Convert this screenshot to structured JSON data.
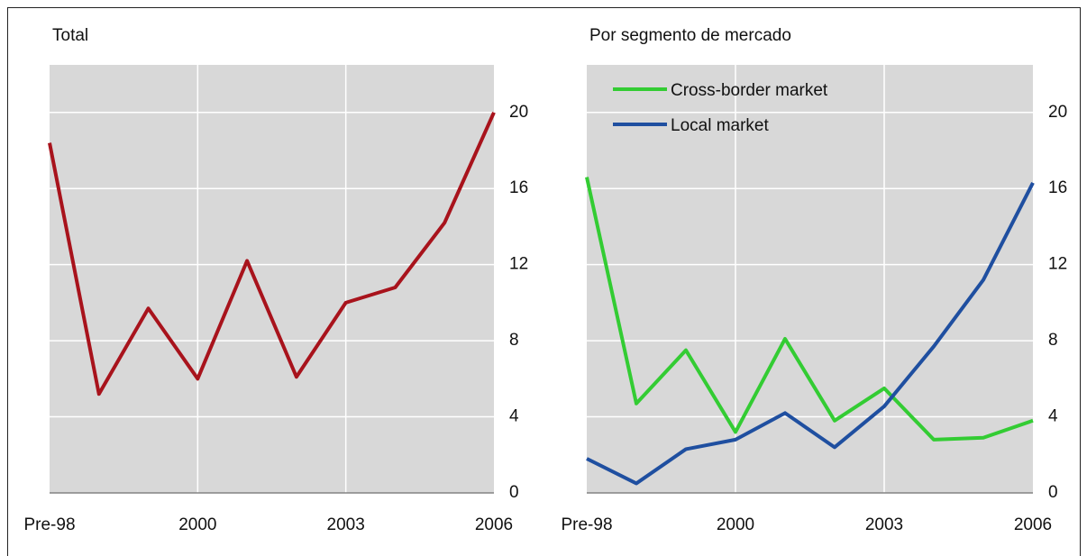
{
  "chart_data": [
    {
      "type": "line",
      "title": "Total",
      "categories": [
        "Pre-98",
        null,
        null,
        "2000",
        null,
        null,
        "2003",
        null,
        null,
        "2006"
      ],
      "series": [
        {
          "name": "Total",
          "color": "#a8131c",
          "values": [
            18.4,
            5.2,
            9.7,
            6.0,
            12.2,
            6.1,
            10.0,
            10.8,
            14.2,
            20.0
          ]
        }
      ],
      "ylim": [
        0,
        22.5
      ],
      "yticks": [
        0,
        4,
        8,
        12,
        16,
        20
      ],
      "grid": true,
      "legend": "none"
    },
    {
      "type": "line",
      "title": "Por segmento de mercado",
      "categories": [
        "Pre-98",
        null,
        null,
        "2000",
        null,
        null,
        "2003",
        null,
        null,
        "2006"
      ],
      "series": [
        {
          "name": "Cross-border market",
          "color": "#33cc33",
          "values": [
            16.6,
            4.7,
            7.5,
            3.2,
            8.1,
            3.8,
            5.5,
            2.8,
            2.9,
            3.8
          ]
        },
        {
          "name": "Local market",
          "color": "#1f4fa0",
          "values": [
            1.8,
            0.5,
            2.3,
            2.8,
            4.2,
            2.4,
            4.55,
            7.7,
            11.2,
            16.3
          ]
        }
      ],
      "ylim": [
        0,
        22.5
      ],
      "yticks": [
        0,
        4,
        8,
        12,
        16,
        20
      ],
      "grid": true,
      "legend": "upper left"
    }
  ]
}
